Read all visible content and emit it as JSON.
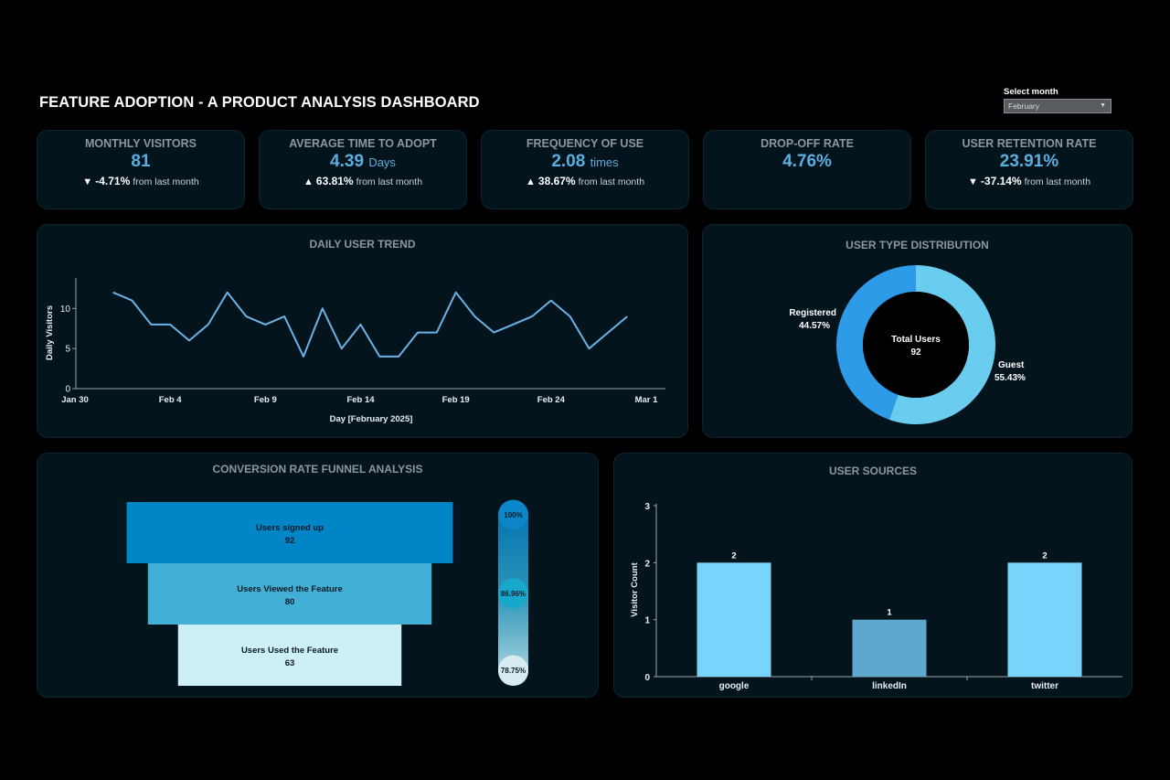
{
  "header": {
    "title": "FEATURE ADOPTION - A  PRODUCT ANALYSIS DASHBOARD",
    "month_label": "Select month",
    "month_value": "February"
  },
  "kpis": [
    {
      "title": "MONTHLY VISITORS",
      "value": "81",
      "unit": "",
      "arrow": "▼",
      "change": "-4.71%",
      "suffix": "from last month"
    },
    {
      "title": "AVERAGE TIME TO ADOPT",
      "value": "4.39",
      "unit": "Days",
      "arrow": "▲",
      "change": "63.81%",
      "suffix": "from last month"
    },
    {
      "title": "FREQUENCY OF USE",
      "value": "2.08",
      "unit": "times",
      "arrow": "▲",
      "change": "38.67%",
      "suffix": "from last month"
    },
    {
      "title": "DROP-OFF RATE",
      "value": "4.76%",
      "unit": "",
      "arrow": "",
      "change": "",
      "suffix": ""
    },
    {
      "title": "USER RETENTION RATE",
      "value": "23.91%",
      "unit": "",
      "arrow": "▼",
      "change": "-37.14%",
      "suffix": "from last month"
    }
  ],
  "colors": {
    "line": "#69b3e7",
    "registered": "#2e9be8",
    "guest": "#6acdf0",
    "funnel": [
      "#0085c7",
      "#42afd6",
      "#cdeff8"
    ],
    "bar_light": "#79d4fb",
    "bar_mid": "#5ea8d0"
  },
  "chart_data": [
    {
      "type": "line",
      "title": "DAILY USER TREND",
      "xlabel": "Day [February 2025]",
      "ylabel": "Daily Visitors",
      "x_ticks": [
        "Jan 30",
        "Feb 4",
        "Feb 9",
        "Feb 14",
        "Feb 19",
        "Feb 24",
        "Mar 1"
      ],
      "y_ticks": [
        0,
        5,
        10
      ],
      "ylim": [
        0,
        13.8
      ],
      "x": [
        "Feb 1",
        "Feb 2",
        "Feb 3",
        "Feb 4",
        "Feb 5",
        "Feb 6",
        "Feb 7",
        "Feb 8",
        "Feb 9",
        "Feb 10",
        "Feb 11",
        "Feb 12",
        "Feb 13",
        "Feb 14",
        "Feb 15",
        "Feb 16",
        "Feb 17",
        "Feb 18",
        "Feb 19",
        "Feb 20",
        "Feb 21",
        "Feb 22",
        "Feb 23",
        "Feb 24",
        "Feb 25",
        "Feb 26",
        "Feb 27",
        "Feb 28"
      ],
      "values": [
        12,
        11,
        8,
        8,
        6,
        8,
        12,
        9,
        8,
        9,
        4,
        10,
        5,
        8,
        4,
        4,
        7,
        7,
        12,
        9,
        7,
        8,
        9,
        11,
        9,
        5,
        7,
        9
      ]
    },
    {
      "type": "pie",
      "title": "USER TYPE DISTRIBUTION",
      "center_label": "Total Users",
      "center_value": "92",
      "slices": [
        {
          "label": "Guest",
          "value": 55.43,
          "pct": "55.43%"
        },
        {
          "label": "Registered",
          "value": 44.57,
          "pct": "44.57%"
        }
      ]
    },
    {
      "type": "bar",
      "title": "CONVERSION RATE FUNNEL ANALYSIS",
      "categories": [
        "Users signed up",
        "Users Viewed the Feature",
        "Users Used the Feature"
      ],
      "values": [
        92,
        80,
        63
      ],
      "rates": [
        "100%",
        "86.96%",
        "78.75%"
      ]
    },
    {
      "type": "bar",
      "title": "USER SOURCES",
      "ylabel": "Visitor Count",
      "categories": [
        "google",
        "linkedIn",
        "twitter"
      ],
      "values": [
        2,
        1,
        2
      ],
      "ylim": [
        0,
        3
      ],
      "y_ticks": [
        0,
        1,
        2,
        3
      ]
    }
  ]
}
